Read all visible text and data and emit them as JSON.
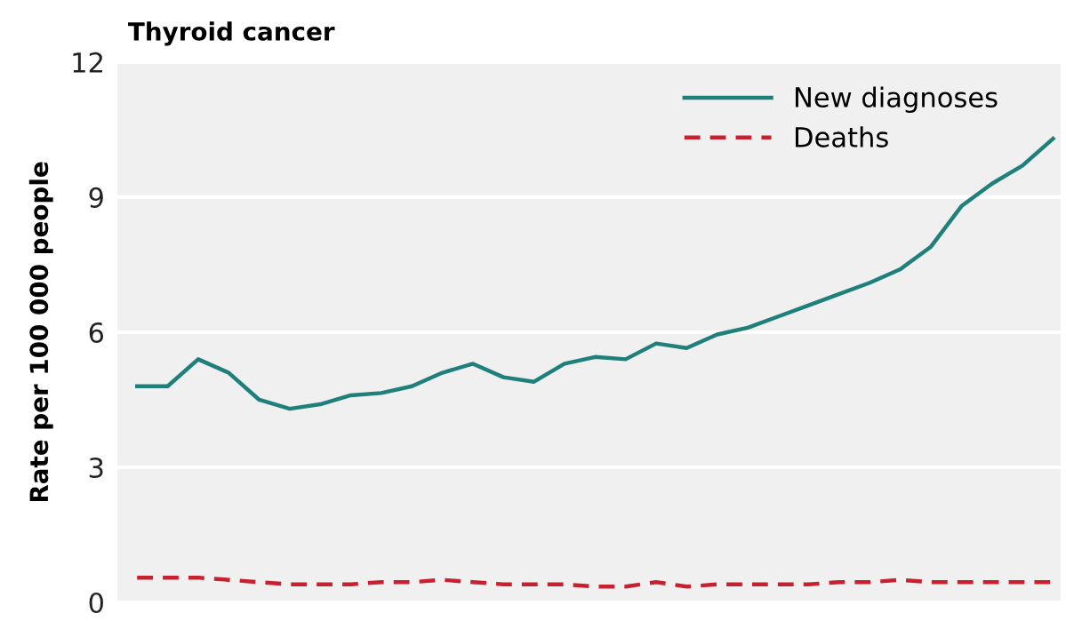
{
  "chart_data": {
    "type": "line",
    "title": "Thyroid cancer",
    "ylabel": "Rate per 100 000 people",
    "categories": [
      null,
      null,
      null,
      null,
      null,
      null,
      null,
      null,
      null,
      null,
      null,
      null,
      null,
      null,
      null,
      null,
      null,
      null,
      null,
      null,
      null,
      null,
      null,
      null,
      null,
      null,
      null,
      null,
      null,
      null,
      null
    ],
    "series": [
      {
        "name": "New diagnoses",
        "color": "#1f7f7a",
        "line_style": "solid",
        "values": [
          4.8,
          4.8,
          5.4,
          5.1,
          4.5,
          4.3,
          4.4,
          4.6,
          4.65,
          4.8,
          5.1,
          5.3,
          5.0,
          4.9,
          5.3,
          5.45,
          5.4,
          5.75,
          5.65,
          5.95,
          6.1,
          6.35,
          6.6,
          6.85,
          7.1,
          7.4,
          7.9,
          8.8,
          9.3,
          9.7,
          10.3
        ]
      },
      {
        "name": "Deaths",
        "color": "#c8202e",
        "line_style": "dashed",
        "values": [
          0.55,
          0.55,
          0.55,
          0.5,
          0.45,
          0.4,
          0.4,
          0.4,
          0.45,
          0.45,
          0.5,
          0.45,
          0.4,
          0.4,
          0.4,
          0.35,
          0.35,
          0.45,
          0.35,
          0.4,
          0.4,
          0.4,
          0.4,
          0.45,
          0.45,
          0.5,
          0.45,
          0.45,
          0.45,
          0.45,
          0.45
        ]
      }
    ],
    "ylim": [
      0,
      12
    ],
    "yticks": [
      0,
      3,
      6,
      9,
      12
    ],
    "grid": "y",
    "legend": "top right",
    "tick_labels": "y"
  }
}
